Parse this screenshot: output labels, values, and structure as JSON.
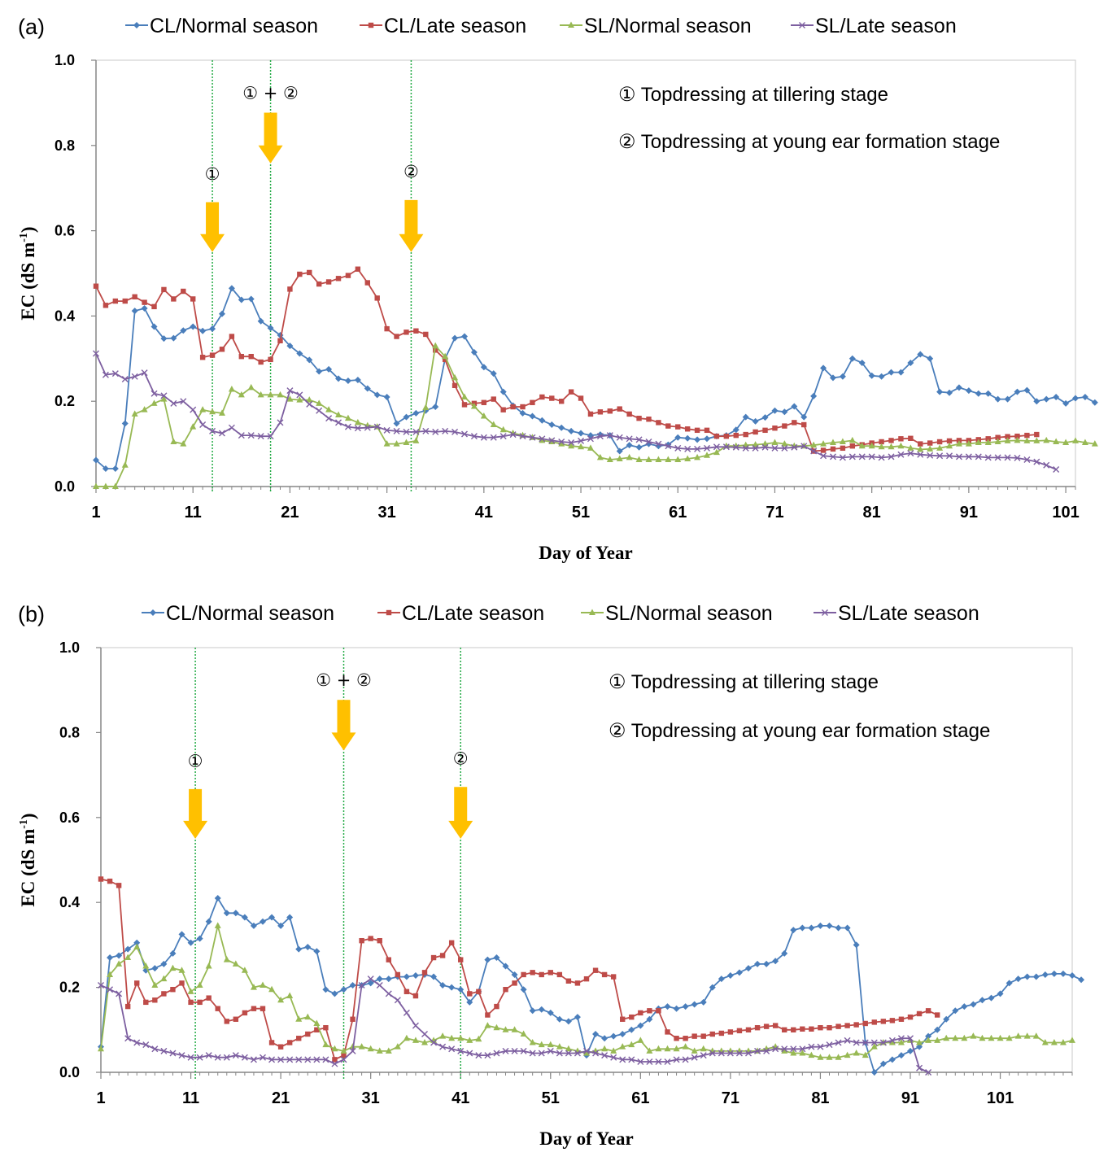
{
  "chart_data": [
    {
      "panel": "(a)",
      "type": "line",
      "xlabel": "Day of Year",
      "ylabel": "EC (dS m",
      "ylabel_sup": "-1",
      "ylabel_close": ")",
      "xlim": [
        1,
        101
      ],
      "xlim_end": 102,
      "ylim": [
        0.0,
        1.0
      ],
      "xticks": [
        1,
        11,
        21,
        31,
        41,
        51,
        61,
        71,
        81,
        91,
        101
      ],
      "yticks": [
        "0.0",
        "0.2",
        "0.4",
        "0.6",
        "0.8",
        "1.0"
      ],
      "notes": [
        "① Topdressing at tillering stage",
        "② Topdressing at young ear formation stage"
      ],
      "events": [
        {
          "day": 13,
          "label": "①",
          "arrow_top": 0.667,
          "arrow_bottom": 0.55,
          "label_y": 0.735
        },
        {
          "day": 19,
          "label": "① + ②",
          "arrow_top": 0.877,
          "arrow_bottom": 0.758,
          "label_y": 0.925
        },
        {
          "day": 33.5,
          "label": "②",
          "arrow_top": 0.672,
          "arrow_bottom": 0.55,
          "label_y": 0.74
        }
      ],
      "series": [
        {
          "name": "CL/Normal season",
          "color": "#4a7ebb",
          "marker": "diamond",
          "start": 1,
          "values": [
            0.062,
            0.042,
            0.042,
            0.148,
            0.412,
            0.418,
            0.375,
            0.347,
            0.348,
            0.366,
            0.375,
            0.365,
            0.37,
            0.405,
            0.465,
            0.438,
            0.44,
            0.388,
            0.372,
            0.355,
            0.33,
            0.312,
            0.297,
            0.27,
            0.275,
            0.253,
            0.248,
            0.25,
            0.23,
            0.215,
            0.21,
            0.148,
            0.163,
            0.172,
            0.178,
            0.187,
            0.3,
            0.348,
            0.352,
            0.315,
            0.28,
            0.265,
            0.222,
            0.19,
            0.172,
            0.165,
            0.155,
            0.145,
            0.138,
            0.13,
            0.125,
            0.12,
            0.122,
            0.12,
            0.083,
            0.097,
            0.092,
            0.1,
            0.095,
            0.098,
            0.115,
            0.113,
            0.11,
            0.112,
            0.118,
            0.12,
            0.133,
            0.163,
            0.153,
            0.162,
            0.178,
            0.175,
            0.188,
            0.163,
            0.212,
            0.278,
            0.255,
            0.258,
            0.3,
            0.29,
            0.26,
            0.258,
            0.268,
            0.268,
            0.29,
            0.31,
            0.3,
            0.222,
            0.22,
            0.232,
            0.225,
            0.218,
            0.218,
            0.205,
            0.205,
            0.222,
            0.226,
            0.2,
            0.205,
            0.21,
            0.195,
            0.207,
            0.21,
            0.197
          ]
        },
        {
          "name": "CL/Late season",
          "color": "#be4b48",
          "marker": "square",
          "start": 1,
          "values": [
            0.47,
            0.425,
            0.435,
            0.435,
            0.445,
            0.432,
            0.422,
            0.462,
            0.44,
            0.458,
            0.44,
            0.303,
            0.308,
            0.322,
            0.352,
            0.305,
            0.305,
            0.292,
            0.298,
            0.342,
            0.463,
            0.498,
            0.502,
            0.475,
            0.48,
            0.488,
            0.495,
            0.51,
            0.478,
            0.442,
            0.37,
            0.352,
            0.362,
            0.365,
            0.357,
            0.32,
            0.298,
            0.237,
            0.192,
            0.195,
            0.197,
            0.205,
            0.18,
            0.187,
            0.187,
            0.197,
            0.21,
            0.207,
            0.2,
            0.222,
            0.207,
            0.17,
            0.175,
            0.177,
            0.182,
            0.17,
            0.16,
            0.158,
            0.15,
            0.142,
            0.14,
            0.135,
            0.132,
            0.132,
            0.118,
            0.118,
            0.12,
            0.122,
            0.128,
            0.132,
            0.137,
            0.142,
            0.15,
            0.145,
            0.083,
            0.085,
            0.088,
            0.09,
            0.095,
            0.098,
            0.102,
            0.105,
            0.108,
            0.112,
            0.113,
            0.1,
            0.102,
            0.105,
            0.107,
            0.108,
            0.108,
            0.11,
            0.112,
            0.115,
            0.117,
            0.118,
            0.12,
            0.122
          ]
        },
        {
          "name": "SL/Normal season",
          "color": "#98b954",
          "marker": "triangle",
          "start": 1,
          "values": [
            0.0,
            0.0,
            0.0,
            0.05,
            0.17,
            0.18,
            0.195,
            0.205,
            0.105,
            0.1,
            0.14,
            0.18,
            0.175,
            0.172,
            0.228,
            0.215,
            0.232,
            0.215,
            0.215,
            0.215,
            0.205,
            0.203,
            0.203,
            0.195,
            0.18,
            0.168,
            0.16,
            0.15,
            0.143,
            0.14,
            0.1,
            0.1,
            0.103,
            0.107,
            0.185,
            0.33,
            0.305,
            0.255,
            0.21,
            0.188,
            0.165,
            0.145,
            0.133,
            0.125,
            0.12,
            0.115,
            0.108,
            0.105,
            0.1,
            0.095,
            0.093,
            0.09,
            0.068,
            0.063,
            0.065,
            0.068,
            0.063,
            0.063,
            0.063,
            0.063,
            0.063,
            0.065,
            0.068,
            0.073,
            0.08,
            0.095,
            0.095,
            0.097,
            0.098,
            0.1,
            0.103,
            0.1,
            0.095,
            0.095,
            0.097,
            0.1,
            0.103,
            0.105,
            0.108,
            0.095,
            0.095,
            0.093,
            0.093,
            0.095,
            0.09,
            0.087,
            0.088,
            0.09,
            0.095,
            0.1,
            0.1,
            0.103,
            0.103,
            0.105,
            0.107,
            0.108,
            0.107,
            0.107,
            0.108,
            0.105,
            0.103,
            0.107,
            0.103,
            0.1
          ]
        },
        {
          "name": "SL/Late season",
          "color": "#7d5fa0",
          "marker": "x",
          "start": 1,
          "values": [
            0.312,
            0.262,
            0.265,
            0.252,
            0.258,
            0.267,
            0.218,
            0.213,
            0.195,
            0.2,
            0.18,
            0.145,
            0.13,
            0.125,
            0.138,
            0.12,
            0.12,
            0.118,
            0.118,
            0.15,
            0.225,
            0.215,
            0.193,
            0.178,
            0.16,
            0.15,
            0.14,
            0.137,
            0.138,
            0.14,
            0.132,
            0.13,
            0.128,
            0.128,
            0.13,
            0.128,
            0.13,
            0.128,
            0.123,
            0.118,
            0.115,
            0.115,
            0.118,
            0.122,
            0.118,
            0.115,
            0.112,
            0.108,
            0.105,
            0.103,
            0.107,
            0.112,
            0.118,
            0.12,
            0.115,
            0.112,
            0.11,
            0.105,
            0.1,
            0.095,
            0.09,
            0.088,
            0.088,
            0.09,
            0.093,
            0.093,
            0.092,
            0.09,
            0.09,
            0.092,
            0.09,
            0.09,
            0.092,
            0.095,
            0.083,
            0.072,
            0.07,
            0.068,
            0.07,
            0.07,
            0.07,
            0.068,
            0.07,
            0.075,
            0.078,
            0.075,
            0.073,
            0.072,
            0.072,
            0.07,
            0.07,
            0.07,
            0.068,
            0.068,
            0.068,
            0.067,
            0.063,
            0.058,
            0.05,
            0.04
          ]
        }
      ]
    },
    {
      "panel": "(b)",
      "type": "line",
      "xlabel": "Day of Year",
      "ylabel": "EC (dS m",
      "ylabel_sup": "-1",
      "ylabel_close": ")",
      "xlim": [
        1,
        108
      ],
      "xlim_end": 109,
      "ylim": [
        0.0,
        1.0
      ],
      "xticks": [
        1,
        11,
        21,
        31,
        41,
        51,
        61,
        71,
        81,
        91,
        101
      ],
      "yticks": [
        "0.0",
        "0.2",
        "0.4",
        "0.6",
        "0.8",
        "1.0"
      ],
      "notes": [
        "① Topdressing at tillering stage",
        "② Topdressing at young ear formation stage"
      ],
      "events": [
        {
          "day": 11.5,
          "label": "①",
          "arrow_top": 0.667,
          "arrow_bottom": 0.55,
          "label_y": 0.735
        },
        {
          "day": 28,
          "label": "① + ②",
          "arrow_top": 0.877,
          "arrow_bottom": 0.758,
          "label_y": 0.925
        },
        {
          "day": 41,
          "label": "②",
          "arrow_top": 0.672,
          "arrow_bottom": 0.55,
          "label_y": 0.74
        }
      ],
      "series": [
        {
          "name": "CL/Normal season",
          "color": "#4a7ebb",
          "marker": "diamond",
          "start": 1,
          "values": [
            0.06,
            0.27,
            0.275,
            0.29,
            0.305,
            0.24,
            0.245,
            0.255,
            0.28,
            0.325,
            0.305,
            0.315,
            0.355,
            0.41,
            0.375,
            0.375,
            0.365,
            0.345,
            0.355,
            0.365,
            0.345,
            0.365,
            0.29,
            0.295,
            0.285,
            0.195,
            0.185,
            0.195,
            0.205,
            0.205,
            0.21,
            0.22,
            0.22,
            0.225,
            0.225,
            0.228,
            0.23,
            0.225,
            0.205,
            0.2,
            0.195,
            0.165,
            0.19,
            0.265,
            0.27,
            0.25,
            0.23,
            0.195,
            0.145,
            0.148,
            0.14,
            0.125,
            0.12,
            0.13,
            0.04,
            0.09,
            0.08,
            0.085,
            0.09,
            0.1,
            0.11,
            0.125,
            0.15,
            0.155,
            0.15,
            0.155,
            0.16,
            0.165,
            0.2,
            0.22,
            0.228,
            0.235,
            0.245,
            0.255,
            0.255,
            0.262,
            0.28,
            0.335,
            0.34,
            0.34,
            0.345,
            0.345,
            0.34,
            0.34,
            0.3,
            0.07,
            0.0,
            0.02,
            0.03,
            0.04,
            0.05,
            0.06,
            0.085,
            0.1,
            0.125,
            0.145,
            0.155,
            0.16,
            0.17,
            0.175,
            0.185,
            0.21,
            0.22,
            0.225,
            0.225,
            0.23,
            0.232,
            0.232,
            0.228,
            0.218
          ]
        },
        {
          "name": "CL/Late season",
          "color": "#be4b48",
          "marker": "square",
          "start": 1,
          "values": [
            0.455,
            0.45,
            0.44,
            0.155,
            0.21,
            0.165,
            0.17,
            0.185,
            0.195,
            0.21,
            0.165,
            0.165,
            0.175,
            0.15,
            0.12,
            0.125,
            0.14,
            0.15,
            0.15,
            0.07,
            0.06,
            0.07,
            0.08,
            0.09,
            0.1,
            0.105,
            0.03,
            0.04,
            0.125,
            0.31,
            0.315,
            0.31,
            0.265,
            0.23,
            0.19,
            0.18,
            0.235,
            0.27,
            0.275,
            0.305,
            0.265,
            0.185,
            0.19,
            0.135,
            0.155,
            0.195,
            0.21,
            0.23,
            0.235,
            0.23,
            0.235,
            0.23,
            0.215,
            0.21,
            0.22,
            0.24,
            0.23,
            0.225,
            0.125,
            0.13,
            0.14,
            0.145,
            0.145,
            0.095,
            0.08,
            0.08,
            0.085,
            0.085,
            0.09,
            0.092,
            0.095,
            0.098,
            0.1,
            0.105,
            0.108,
            0.11,
            0.1,
            0.1,
            0.102,
            0.102,
            0.105,
            0.105,
            0.108,
            0.11,
            0.112,
            0.115,
            0.118,
            0.12,
            0.122,
            0.125,
            0.13,
            0.138,
            0.145,
            0.135
          ]
        },
        {
          "name": "SL/Normal season",
          "color": "#98b954",
          "marker": "triangle",
          "start": 1,
          "values": [
            0.055,
            0.23,
            0.255,
            0.27,
            0.295,
            0.25,
            0.205,
            0.22,
            0.245,
            0.24,
            0.19,
            0.205,
            0.25,
            0.345,
            0.265,
            0.255,
            0.24,
            0.2,
            0.205,
            0.195,
            0.17,
            0.18,
            0.125,
            0.13,
            0.115,
            0.065,
            0.055,
            0.05,
            0.06,
            0.06,
            0.055,
            0.05,
            0.05,
            0.06,
            0.08,
            0.075,
            0.07,
            0.075,
            0.085,
            0.08,
            0.08,
            0.075,
            0.078,
            0.11,
            0.105,
            0.1,
            0.1,
            0.09,
            0.07,
            0.065,
            0.065,
            0.06,
            0.055,
            0.05,
            0.045,
            0.05,
            0.055,
            0.05,
            0.06,
            0.065,
            0.075,
            0.05,
            0.055,
            0.055,
            0.055,
            0.06,
            0.05,
            0.055,
            0.05,
            0.05,
            0.05,
            0.05,
            0.05,
            0.05,
            0.055,
            0.06,
            0.05,
            0.045,
            0.045,
            0.04,
            0.035,
            0.035,
            0.035,
            0.04,
            0.045,
            0.04,
            0.06,
            0.07,
            0.07,
            0.07,
            0.075,
            0.07,
            0.075,
            0.075,
            0.08,
            0.08,
            0.08,
            0.085,
            0.08,
            0.08,
            0.08,
            0.08,
            0.085,
            0.085,
            0.085,
            0.07,
            0.07,
            0.07,
            0.075
          ]
        },
        {
          "name": "SL/Late season",
          "color": "#7d5fa0",
          "marker": "x",
          "start": 1,
          "values": [
            0.205,
            0.195,
            0.185,
            0.08,
            0.07,
            0.065,
            0.055,
            0.05,
            0.045,
            0.04,
            0.035,
            0.035,
            0.04,
            0.035,
            0.035,
            0.04,
            0.035,
            0.03,
            0.035,
            0.03,
            0.03,
            0.03,
            0.03,
            0.03,
            0.03,
            0.03,
            0.02,
            0.03,
            0.05,
            0.205,
            0.22,
            0.205,
            0.185,
            0.17,
            0.14,
            0.11,
            0.09,
            0.07,
            0.06,
            0.055,
            0.05,
            0.045,
            0.04,
            0.04,
            0.045,
            0.05,
            0.05,
            0.05,
            0.045,
            0.045,
            0.05,
            0.045,
            0.045,
            0.045,
            0.05,
            0.045,
            0.04,
            0.035,
            0.03,
            0.03,
            0.025,
            0.025,
            0.025,
            0.025,
            0.03,
            0.03,
            0.035,
            0.04,
            0.045,
            0.045,
            0.045,
            0.045,
            0.045,
            0.05,
            0.05,
            0.055,
            0.055,
            0.055,
            0.055,
            0.06,
            0.06,
            0.065,
            0.07,
            0.075,
            0.07,
            0.07,
            0.07,
            0.07,
            0.075,
            0.08,
            0.08,
            0.01,
            0.0
          ]
        }
      ]
    }
  ]
}
